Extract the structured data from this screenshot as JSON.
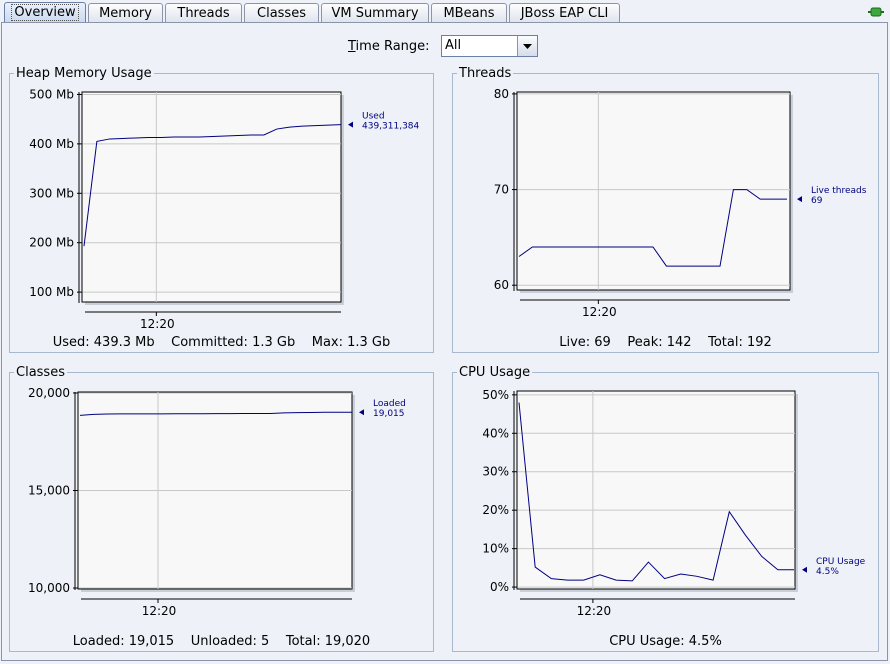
{
  "tabs": [
    {
      "label": "Overview",
      "active": true
    },
    {
      "label": "Memory"
    },
    {
      "label": "Threads"
    },
    {
      "label": "Classes"
    },
    {
      "label": "VM Summary"
    },
    {
      "label": "MBeans"
    },
    {
      "label": "JBoss EAP CLI"
    }
  ],
  "connection_icon": "plug-connected-icon",
  "time_range": {
    "label": "Time Range:",
    "mnemonic": "T",
    "rest": "ime Range:",
    "value": "All"
  },
  "panels": {
    "heap": {
      "title": "Heap Memory Usage",
      "footer": {
        "used": "Used: 439.3 Mb",
        "committed": "Committed: 1.3 Gb",
        "max": "Max: 1.3 Gb"
      },
      "chart_data": {
        "type": "line",
        "y_ticks": [
          "500 Mb",
          "400 Mb",
          "300 Mb",
          "200 Mb",
          "100 Mb"
        ],
        "y_tick_values": [
          500,
          400,
          300,
          200,
          100
        ],
        "ylim": [
          80,
          505
        ],
        "x_ticks": [
          "12:20"
        ],
        "series": [
          {
            "name": "Used",
            "label_value": "439,311,384",
            "color": "#000080",
            "x": [
              0,
              1,
              2,
              3,
              4,
              5,
              6,
              7,
              8,
              9,
              10,
              11,
              12,
              13,
              14,
              15,
              16,
              17,
              18,
              19,
              20
            ],
            "y": [
              193,
              405,
              410,
              411,
              412,
              413,
              413,
              414,
              414,
              414,
              415,
              416,
              417,
              418,
              418,
              430,
              434,
              436,
              437,
              438,
              439
            ]
          }
        ]
      }
    },
    "threads": {
      "title": "Threads",
      "footer": {
        "live": "Live: 69",
        "peak": "Peak: 142",
        "total": "Total: 192"
      },
      "chart_data": {
        "type": "line",
        "y_ticks": [
          "80",
          "70",
          "60"
        ],
        "y_tick_values": [
          80,
          70,
          60
        ],
        "ylim": [
          59.5,
          80.2
        ],
        "x_ticks": [
          "12:20"
        ],
        "series": [
          {
            "name": "Live threads",
            "label_value": "69",
            "color": "#000080",
            "x": [
              0,
              1,
              2,
              3,
              4,
              5,
              6,
              7,
              8,
              9,
              10,
              11,
              12,
              13,
              14,
              15,
              16,
              17,
              18,
              19,
              20
            ],
            "y": [
              63,
              64,
              64,
              64,
              64,
              64,
              64,
              64,
              64,
              64,
              64,
              62,
              62,
              62,
              62,
              62,
              70,
              70,
              69,
              69,
              69
            ]
          }
        ]
      }
    },
    "classes": {
      "title": "Classes",
      "footer": {
        "loaded": "Loaded: 19,015",
        "unloaded": "Unloaded: 5",
        "total": "Total: 19,020"
      },
      "chart_data": {
        "type": "line",
        "y_ticks": [
          "20,000",
          "15,000",
          "10,000"
        ],
        "y_tick_values": [
          20000,
          15000,
          10000
        ],
        "ylim": [
          9950,
          20050
        ],
        "x_ticks": [
          "12:20"
        ],
        "series": [
          {
            "name": "Loaded",
            "label_value": "19,015",
            "color": "#000080",
            "x": [
              0,
              1,
              2,
              3,
              4,
              5,
              6,
              7,
              8,
              9,
              10,
              11,
              12,
              13,
              14,
              15,
              16,
              17,
              18,
              19,
              20
            ],
            "y": [
              18850,
              18900,
              18920,
              18930,
              18930,
              18930,
              18930,
              18935,
              18935,
              18935,
              18940,
              18940,
              18945,
              18945,
              18950,
              18980,
              18990,
              19000,
              19010,
              19015,
              19015
            ]
          }
        ]
      }
    },
    "cpu": {
      "title": "CPU Usage",
      "footer": {
        "usage": "CPU Usage: 4.5%"
      },
      "chart_data": {
        "type": "line",
        "y_ticks": [
          "50%",
          "40%",
          "30%",
          "20%",
          "10%",
          "0%"
        ],
        "y_tick_values": [
          50,
          40,
          30,
          20,
          10,
          0
        ],
        "ylim": [
          -0.5,
          51
        ],
        "x_ticks": [
          "12:20"
        ],
        "series": [
          {
            "name": "CPU Usage",
            "label_value": "4.5%",
            "color": "#000080",
            "x": [
              0,
              1,
              2,
              3,
              4,
              5,
              6,
              7,
              8,
              9,
              10,
              11,
              12,
              13,
              14,
              15,
              16,
              17
            ],
            "y": [
              48,
              5.2,
              2.2,
              1.8,
              1.8,
              3.2,
              1.8,
              1.6,
              6.5,
              2.2,
              3.4,
              2.8,
              1.8,
              19.6,
              13.5,
              8.0,
              4.5,
              4.5
            ]
          }
        ]
      }
    }
  }
}
